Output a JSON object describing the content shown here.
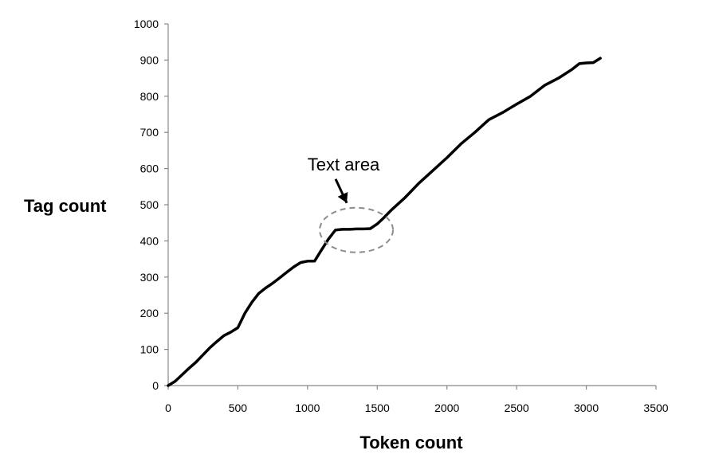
{
  "chart_data": {
    "type": "line",
    "title": "",
    "xlabel": "Token count",
    "ylabel": "Tag count",
    "xlim": [
      0,
      3500
    ],
    "ylim": [
      0,
      1000
    ],
    "x_ticks": [
      0,
      500,
      1000,
      1500,
      2000,
      2500,
      3000,
      3500
    ],
    "y_ticks": [
      0,
      100,
      200,
      300,
      400,
      500,
      600,
      700,
      800,
      900,
      1000
    ],
    "grid": false,
    "legend": "none",
    "line_color": "#000000",
    "series": [
      {
        "x": [
          0,
          50,
          100,
          150,
          200,
          250,
          300,
          350,
          400,
          450,
          500,
          550,
          600,
          650,
          700,
          750,
          800,
          850,
          900,
          950,
          1000,
          1050,
          1100,
          1150,
          1200,
          1250,
          1300,
          1350,
          1400,
          1450,
          1500,
          1550,
          1600,
          1700,
          1800,
          1900,
          2000,
          2100,
          2200,
          2300,
          2400,
          2500,
          2600,
          2700,
          2800,
          2900,
          2950,
          3000,
          3050,
          3100
        ],
        "y": [
          0,
          12,
          30,
          48,
          65,
          85,
          105,
          122,
          138,
          148,
          160,
          200,
          230,
          255,
          270,
          283,
          298,
          313,
          328,
          340,
          344,
          344,
          375,
          405,
          430,
          432,
          432,
          433,
          433,
          434,
          447,
          465,
          485,
          520,
          560,
          595,
          630,
          668,
          700,
          735,
          755,
          778,
          800,
          830,
          850,
          875,
          890,
          892,
          893,
          905
        ]
      }
    ],
    "annotations": [
      {
        "text": "Text area",
        "x": 1350,
        "y": 430
      }
    ]
  }
}
